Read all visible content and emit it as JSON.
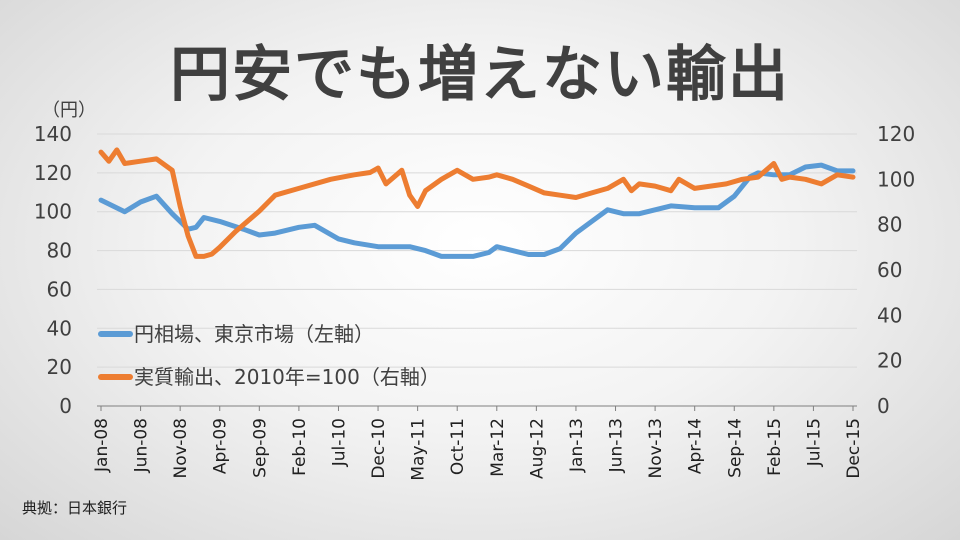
{
  "title": "円安でも増えない輸出",
  "unit_label": "（円）",
  "source": "典拠：日本銀行",
  "colors": {
    "yen": "#5b9bd5",
    "exports": "#ed7d31",
    "grid": "#d9d9d9",
    "axis": "#7f7f7f"
  },
  "chart_data": {
    "type": "line",
    "title": "円安でも増えない輸出",
    "left_axis": {
      "label": "（円）",
      "ylim": [
        0,
        140
      ],
      "ticks": [
        0,
        20,
        40,
        60,
        80,
        100,
        120,
        140
      ]
    },
    "right_axis": {
      "ylim": [
        0,
        120
      ],
      "ticks": [
        0,
        20,
        40,
        60,
        80,
        100,
        120
      ]
    },
    "x_tick_labels": [
      "Jan-08",
      "Jun-08",
      "Nov-08",
      "Apr-09",
      "Sep-09",
      "Feb-10",
      "Jul-10",
      "Dec-10",
      "May-11",
      "Oct-11",
      "Mar-12",
      "Aug-12",
      "Jan-13",
      "Jun-13",
      "Nov-13",
      "Apr-14",
      "Sep-14",
      "Feb-15",
      "Jul-15",
      "Dec-15"
    ],
    "grid": true,
    "legend_position": "bottom-left inside",
    "series": [
      {
        "name": "円相場、東京市場（左軸）",
        "axis": "left",
        "color": "#5b9bd5",
        "x": [
          "Jan-08",
          "Apr-08",
          "Jun-08",
          "Aug-08",
          "Oct-08",
          "Dec-08",
          "Jan-09",
          "Feb-09",
          "Apr-09",
          "Jul-09",
          "Sep-09",
          "Nov-09",
          "Feb-10",
          "Apr-10",
          "Jul-10",
          "Sep-10",
          "Dec-10",
          "Feb-11",
          "Apr-11",
          "Jun-11",
          "Aug-11",
          "Oct-11",
          "Dec-11",
          "Feb-12",
          "Mar-12",
          "May-12",
          "Jul-12",
          "Sep-12",
          "Nov-12",
          "Jan-13",
          "Mar-13",
          "May-13",
          "Jul-13",
          "Sep-13",
          "Nov-13",
          "Jan-14",
          "Apr-14",
          "Jul-14",
          "Sep-14",
          "Nov-14",
          "Dec-14",
          "Feb-15",
          "Apr-15",
          "Jun-15",
          "Aug-15",
          "Oct-15",
          "Dec-15"
        ],
        "values": [
          106,
          100,
          105,
          108,
          99,
          91,
          92,
          97,
          95,
          91,
          88,
          89,
          92,
          93,
          86,
          84,
          82,
          82,
          82,
          80,
          77,
          77,
          77,
          79,
          82,
          80,
          78,
          78,
          81,
          89,
          95,
          101,
          99,
          99,
          101,
          103,
          102,
          102,
          108,
          118,
          120,
          119,
          119,
          123,
          124,
          121,
          121
        ]
      },
      {
        "name": "実質輸出、2010年=100（右軸）",
        "axis": "right",
        "color": "#ed7d31",
        "x": [
          "Jan-08",
          "Feb-08",
          "Mar-08",
          "Apr-08",
          "Jun-08",
          "Aug-08",
          "Oct-08",
          "Nov-08",
          "Dec-08",
          "Jan-09",
          "Feb-09",
          "Mar-09",
          "Apr-09",
          "Jun-09",
          "Sep-09",
          "Nov-09",
          "Feb-10",
          "Jun-10",
          "Sep-10",
          "Nov-10",
          "Dec-10",
          "Jan-11",
          "Mar-11",
          "Apr-11",
          "May-11",
          "Jun-11",
          "Aug-11",
          "Oct-11",
          "Dec-11",
          "Feb-12",
          "Mar-12",
          "May-12",
          "Jul-12",
          "Sep-12",
          "Nov-12",
          "Jan-13",
          "Mar-13",
          "May-13",
          "Jul-13",
          "Aug-13",
          "Sep-13",
          "Nov-13",
          "Jan-14",
          "Feb-14",
          "Apr-14",
          "Jun-14",
          "Aug-14",
          "Oct-14",
          "Dec-14",
          "Feb-15",
          "Mar-15",
          "Apr-15",
          "Jun-15",
          "Aug-15",
          "Oct-15",
          "Dec-15"
        ],
        "values": [
          112,
          108,
          113,
          107,
          108,
          109,
          104,
          88,
          75,
          66,
          66,
          67,
          70,
          77,
          86,
          93,
          96,
          100,
          102,
          103,
          105,
          98,
          104,
          93,
          88,
          95,
          100,
          104,
          100,
          101,
          102,
          100,
          97,
          94,
          93,
          92,
          94,
          96,
          100,
          95,
          98,
          97,
          95,
          100,
          96,
          97,
          98,
          100,
          101,
          107,
          100,
          101,
          100,
          98,
          102,
          101
        ]
      }
    ]
  }
}
